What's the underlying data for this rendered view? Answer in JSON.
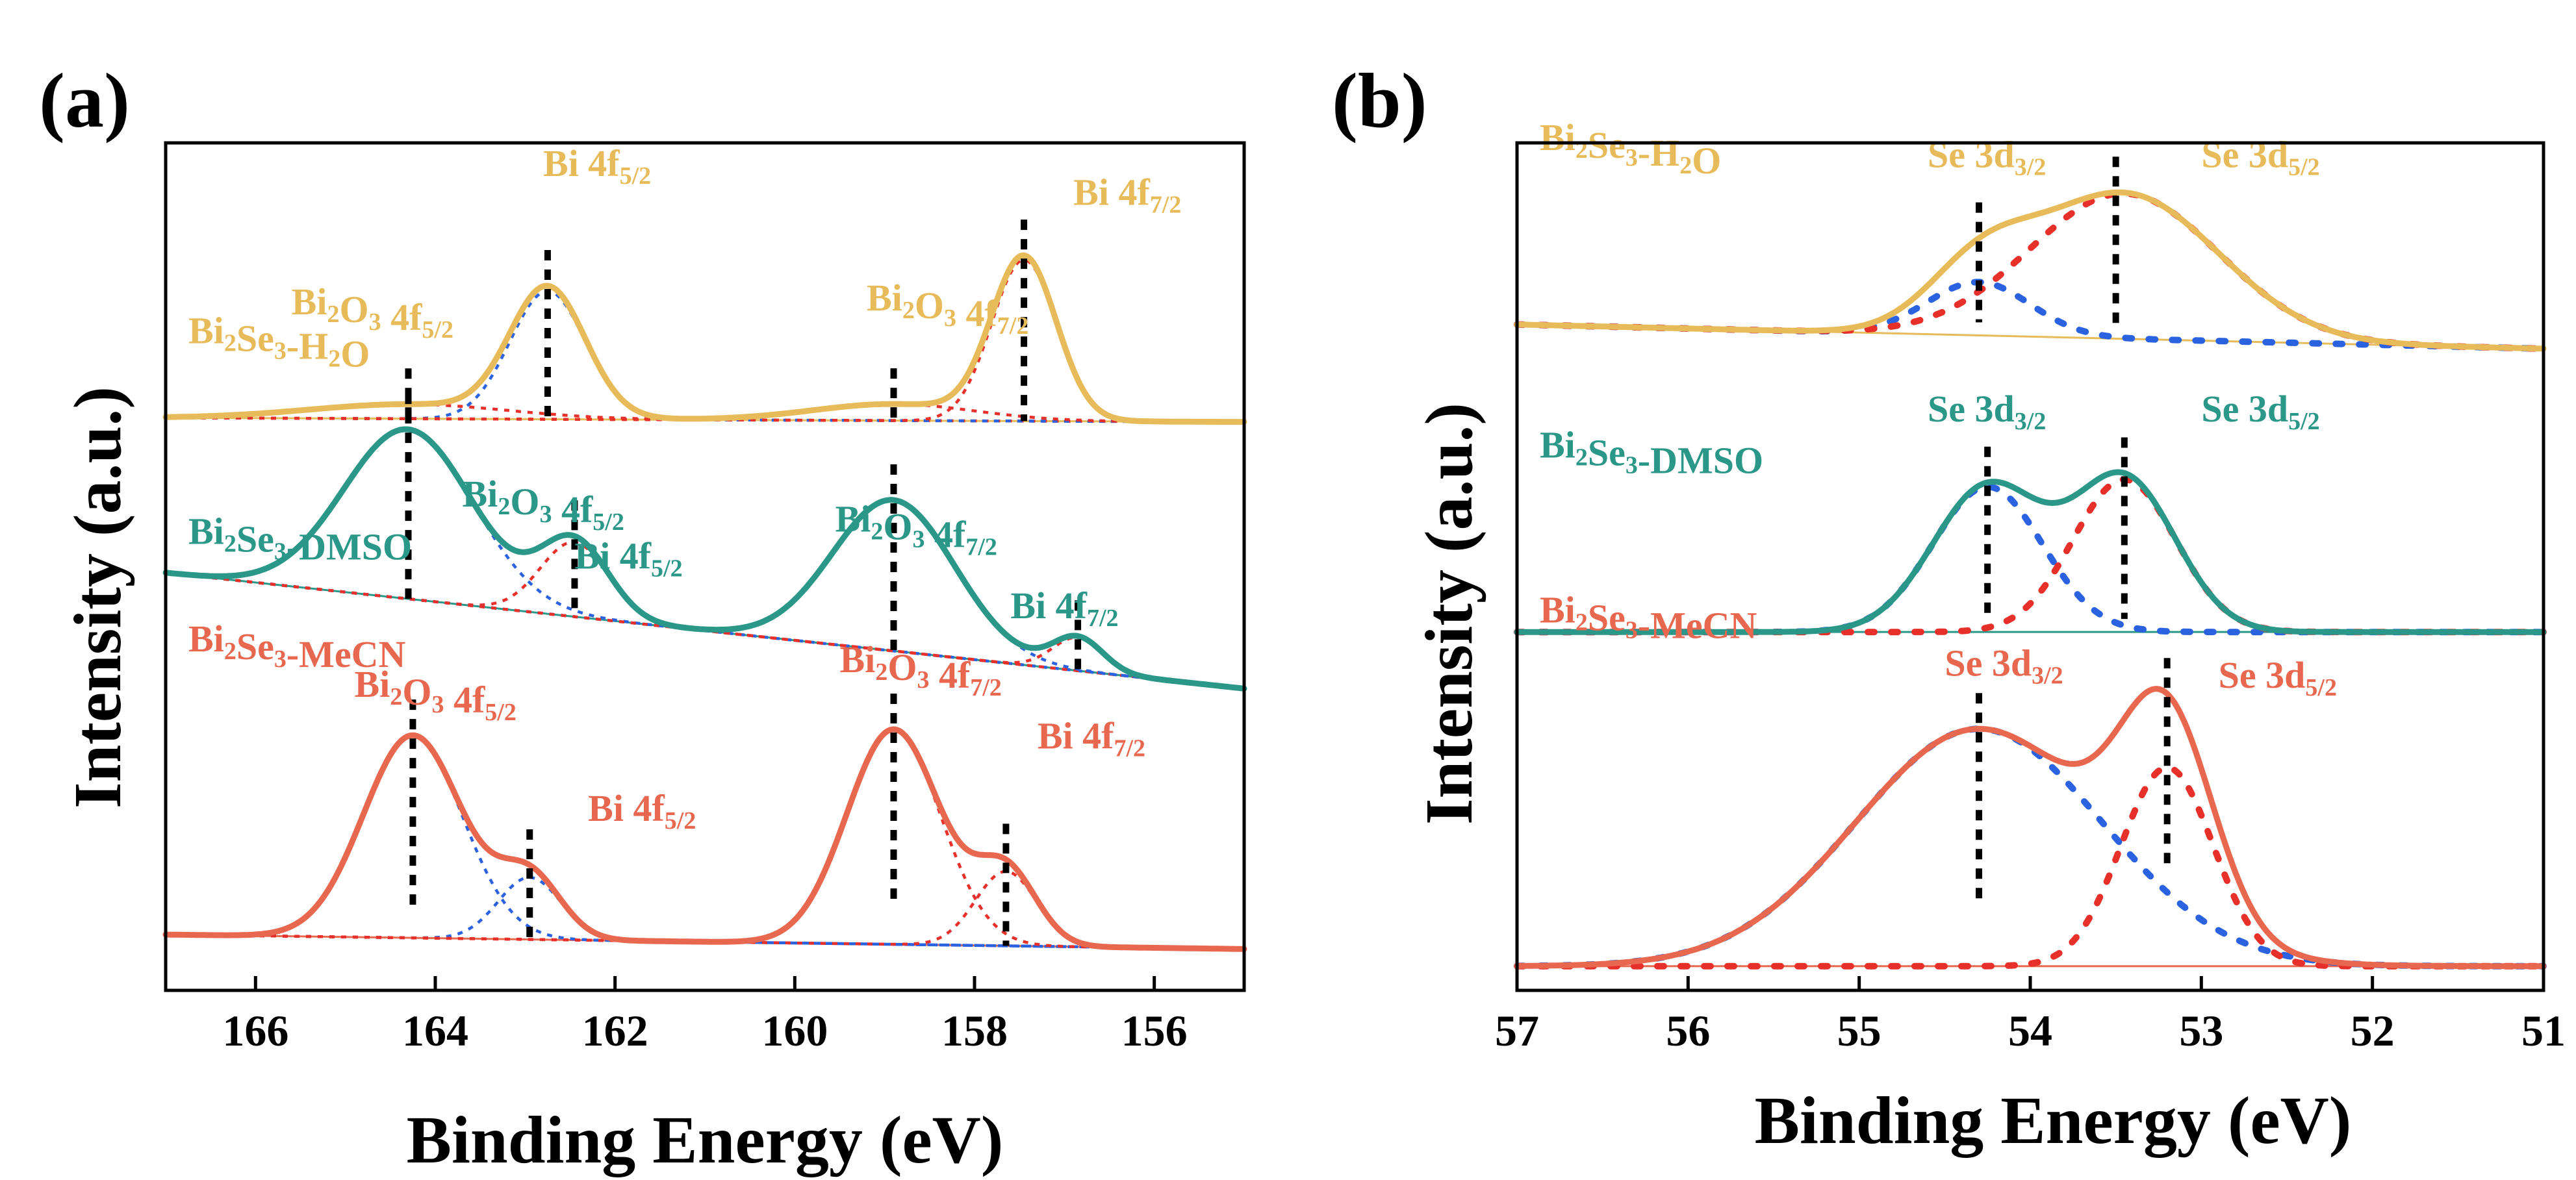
{
  "colors": {
    "h2o": "#e8bb5a",
    "dmso": "#2a9788",
    "mecn": "#e8684f",
    "fit_red": "#e8302a",
    "fit_blue": "#2b62e0"
  },
  "chart_data": [
    {
      "panel": "(a)",
      "type": "line",
      "xlabel": "Binding Energy (eV)",
      "ylabel": "Intensity (a.u.)",
      "xlim": [
        167,
        155
      ],
      "x_reversed": true,
      "xticks": [
        166,
        164,
        162,
        160,
        158,
        156
      ],
      "yticks": [],
      "series": [
        {
          "name": "Bi2Se3-H2O",
          "label_main": "Bi",
          "label_sub1": "2",
          "label_mid": "Se",
          "label_sub2": "3",
          "label_tail": "-H",
          "label_sub3": "2",
          "label_end": "O",
          "color_key": "h2o",
          "offset": 2.55,
          "baseline": [
            [
              167,
              0.0
            ],
            [
              155,
              -0.02
            ]
          ],
          "components": [
            {
              "name": "Bi2O3 4f5/2",
              "center": 164.3,
              "height": 0.07,
              "width": 1.1,
              "fit_color": "fit_red"
            },
            {
              "name": "Bi 4f5/2",
              "center": 162.75,
              "height": 0.62,
              "width": 0.42,
              "fit_color": "fit_blue"
            },
            {
              "name": "Bi2O3 4f7/2",
              "center": 158.9,
              "height": 0.08,
              "width": 0.9,
              "fit_color": "fit_red"
            },
            {
              "name": "Bi 4f7/2",
              "center": 157.45,
              "height": 0.78,
              "width": 0.36,
              "fit_color": "fit_red"
            }
          ],
          "labels": [
            {
              "pre": "Bi",
              "s1": "2",
              "mid": "O",
              "s2": "3",
              "post": " 4f",
              "s3": "5/2",
              "x": 165.6,
              "y": 3.05
            },
            {
              "pre": "Bi 4f",
              "s1": "5/2",
              "mid": "",
              "s2": "",
              "post": "",
              "s3": "",
              "x": 162.8,
              "y": 3.72
            },
            {
              "pre": "Bi",
              "s1": "2",
              "mid": "O",
              "s2": "3",
              "post": " 4f",
              "s3": "7/2",
              "x": 159.2,
              "y": 3.07
            },
            {
              "pre": "Bi 4f",
              "s1": "7/2",
              "mid": "",
              "s2": "",
              "post": "",
              "s3": "",
              "x": 156.9,
              "y": 3.58
            }
          ],
          "markers": [
            164.3,
            162.75,
            158.9,
            157.45
          ]
        },
        {
          "name": "Bi2Se3-DMSO",
          "label_main": "Bi",
          "label_sub1": "2",
          "label_mid": "Se",
          "label_sub2": "3",
          "label_tail": "-DMSO",
          "label_sub3": "",
          "label_end": "",
          "color_key": "dmso",
          "offset": 1.28,
          "baseline": [
            [
              167,
              0.52
            ],
            [
              155,
              -0.04
            ]
          ],
          "components": [
            {
              "name": "Bi2O3 4f5/2",
              "center": 164.3,
              "height": 0.82,
              "width": 0.72,
              "fit_color": "fit_blue"
            },
            {
              "name": "Bi 4f5/2",
              "center": 162.45,
              "height": 0.36,
              "width": 0.38,
              "fit_color": "fit_red"
            },
            {
              "name": "Bi2O3 4f7/2",
              "center": 158.9,
              "height": 0.73,
              "width": 0.68,
              "fit_color": "fit_blue"
            },
            {
              "name": "Bi 4f7/2",
              "center": 156.85,
              "height": 0.16,
              "width": 0.28,
              "fit_color": "fit_red"
            }
          ],
          "labels": [
            {
              "pre": "Bi",
              "s1": "2",
              "mid": "O",
              "s2": "3",
              "post": " 4f",
              "s3": "5/2",
              "x": 163.7,
              "y": 2.12
            },
            {
              "pre": "Bi 4f",
              "s1": "5/2",
              "mid": "",
              "s2": "",
              "post": "",
              "s3": "",
              "x": 162.45,
              "y": 1.82
            },
            {
              "pre": "Bi",
              "s1": "2",
              "mid": "O",
              "s2": "3",
              "post": " 4f",
              "s3": "7/2",
              "x": 159.55,
              "y": 2.0
            },
            {
              "pre": "Bi 4f",
              "s1": "7/2",
              "mid": "",
              "s2": "",
              "post": "",
              "s3": "",
              "x": 157.6,
              "y": 1.58
            }
          ],
          "markers": [
            164.3,
            162.45,
            158.9,
            156.85
          ]
        },
        {
          "name": "Bi2Se3-MeCN",
          "label_main": "Bi",
          "label_sub1": "2",
          "label_mid": "Se",
          "label_sub2": "3",
          "label_tail": "-MeCN",
          "label_sub3": "",
          "label_end": "",
          "color_key": "mecn",
          "offset": 0.0,
          "baseline": [
            [
              167,
              0.05
            ],
            [
              155,
              -0.02
            ]
          ],
          "components": [
            {
              "name": "Bi2O3 4f5/2",
              "center": 164.25,
              "height": 0.98,
              "width": 0.55,
              "fit_color": "fit_blue"
            },
            {
              "name": "Bi 4f5/2",
              "center": 162.95,
              "height": 0.3,
              "width": 0.35,
              "fit_color": "fit_blue"
            },
            {
              "name": "Bi2O3 4f7/2",
              "center": 158.9,
              "height": 1.04,
              "width": 0.52,
              "fit_color": "fit_red"
            },
            {
              "name": "Bi 4f7/2",
              "center": 157.65,
              "height": 0.36,
              "width": 0.34,
              "fit_color": "fit_red"
            }
          ],
          "labels": [
            {
              "pre": "Bi",
              "s1": "2",
              "mid": "O",
              "s2": "3",
              "post": " 4f",
              "s3": "5/2",
              "x": 164.9,
              "y": 1.2
            },
            {
              "pre": "Bi 4f",
              "s1": "5/2",
              "mid": "",
              "s2": "",
              "post": "",
              "s3": "",
              "x": 162.3,
              "y": 0.6
            },
            {
              "pre": "Bi",
              "s1": "2",
              "mid": "O",
              "s2": "3",
              "post": " 4f",
              "s3": "7/2",
              "x": 159.5,
              "y": 1.32
            },
            {
              "pre": "Bi 4f",
              "s1": "7/2",
              "mid": "",
              "s2": "",
              "post": "",
              "s3": "",
              "x": 157.3,
              "y": 0.95
            }
          ],
          "markers": [
            164.25,
            162.95,
            158.9,
            157.65
          ]
        }
      ],
      "ylim": [
        -0.22,
        3.88
      ]
    },
    {
      "panel": "(b)",
      "type": "line",
      "xlabel": "Binding Energy (eV)",
      "ylabel": "Intensity (a.u.)",
      "xlim": [
        57,
        51
      ],
      "x_reversed": true,
      "xticks": [
        57,
        56,
        55,
        54,
        53,
        52,
        51
      ],
      "yticks": [],
      "series": [
        {
          "name": "Bi2Se3-H2O",
          "label_main": "Bi",
          "label_sub1": "2",
          "label_mid": "Se",
          "label_sub2": "3",
          "label_tail": "-H",
          "label_sub3": "2",
          "label_end": "O",
          "color_key": "h2o",
          "offset": 2.55,
          "baseline": [
            [
              57,
              0.1
            ],
            [
              51,
              0.0
            ]
          ],
          "components": [
            {
              "name": "Se 3d3/2",
              "center": 54.3,
              "height": 0.22,
              "width": 0.3,
              "fit_color": "fit_blue"
            },
            {
              "name": "Se 3d5/2",
              "center": 53.45,
              "height": 0.6,
              "width": 0.55,
              "fit_color": "fit_red"
            }
          ],
          "labels": [
            {
              "pre": "Se 3d",
              "s1": "3/2",
              "mid": "",
              "s2": "",
              "post": "",
              "s3": "",
              "x": 54.6,
              "y": 3.3
            },
            {
              "pre": "Se 3d",
              "s1": "5/2",
              "mid": "",
              "s2": "",
              "post": "",
              "s3": "",
              "x": 53.0,
              "y": 3.3
            }
          ],
          "markers": [
            54.3,
            53.5
          ]
        },
        {
          "name": "Bi2Se3-DMSO",
          "label_main": "Bi",
          "label_sub1": "2",
          "label_mid": "Se",
          "label_sub2": "3",
          "label_tail": "-DMSO",
          "label_sub3": "",
          "label_end": "",
          "color_key": "dmso",
          "offset": 1.38,
          "baseline": [
            [
              57,
              0.0
            ],
            [
              51,
              0.0
            ]
          ],
          "components": [
            {
              "name": "Se 3d3/2",
              "center": 54.25,
              "height": 0.6,
              "width": 0.32,
              "fit_color": "fit_blue"
            },
            {
              "name": "Se 3d5/2",
              "center": 53.45,
              "height": 0.63,
              "width": 0.3,
              "fit_color": "fit_red"
            }
          ],
          "labels": [
            {
              "pre": "Se 3d",
              "s1": "3/2",
              "mid": "",
              "s2": "",
              "post": "",
              "s3": "",
              "x": 54.6,
              "y": 2.25
            },
            {
              "pre": "Se 3d",
              "s1": "5/2",
              "mid": "",
              "s2": "",
              "post": "",
              "s3": "",
              "x": 53.0,
              "y": 2.25
            }
          ],
          "markers": [
            54.25,
            53.45
          ]
        },
        {
          "name": "Bi2Se3-MeCN",
          "label_main": "Bi",
          "label_sub1": "2",
          "label_mid": "Se",
          "label_sub2": "3",
          "label_tail": "-MeCN",
          "label_sub3": "",
          "label_end": "",
          "color_key": "mecn",
          "offset": 0.0,
          "baseline": [
            [
              57,
              0.0
            ],
            [
              51,
              0.0
            ]
          ],
          "components": [
            {
              "name": "Se 3d3/2",
              "center": 54.3,
              "height": 0.98,
              "width": 0.72,
              "fit_color": "fit_blue"
            },
            {
              "name": "Se 3d5/2",
              "center": 53.2,
              "height": 0.82,
              "width": 0.27,
              "fit_color": "fit_red"
            }
          ],
          "labels": [
            {
              "pre": "Se 3d",
              "s1": "3/2",
              "mid": "",
              "s2": "",
              "post": "",
              "s3": "",
              "x": 54.5,
              "y": 1.2
            },
            {
              "pre": "Se 3d",
              "s1": "5/2",
              "mid": "",
              "s2": "",
              "post": "",
              "s3": "",
              "x": 52.9,
              "y": 1.15
            }
          ],
          "markers": [
            54.3,
            53.2
          ]
        }
      ],
      "ylim": [
        -0.1,
        3.4
      ]
    }
  ]
}
